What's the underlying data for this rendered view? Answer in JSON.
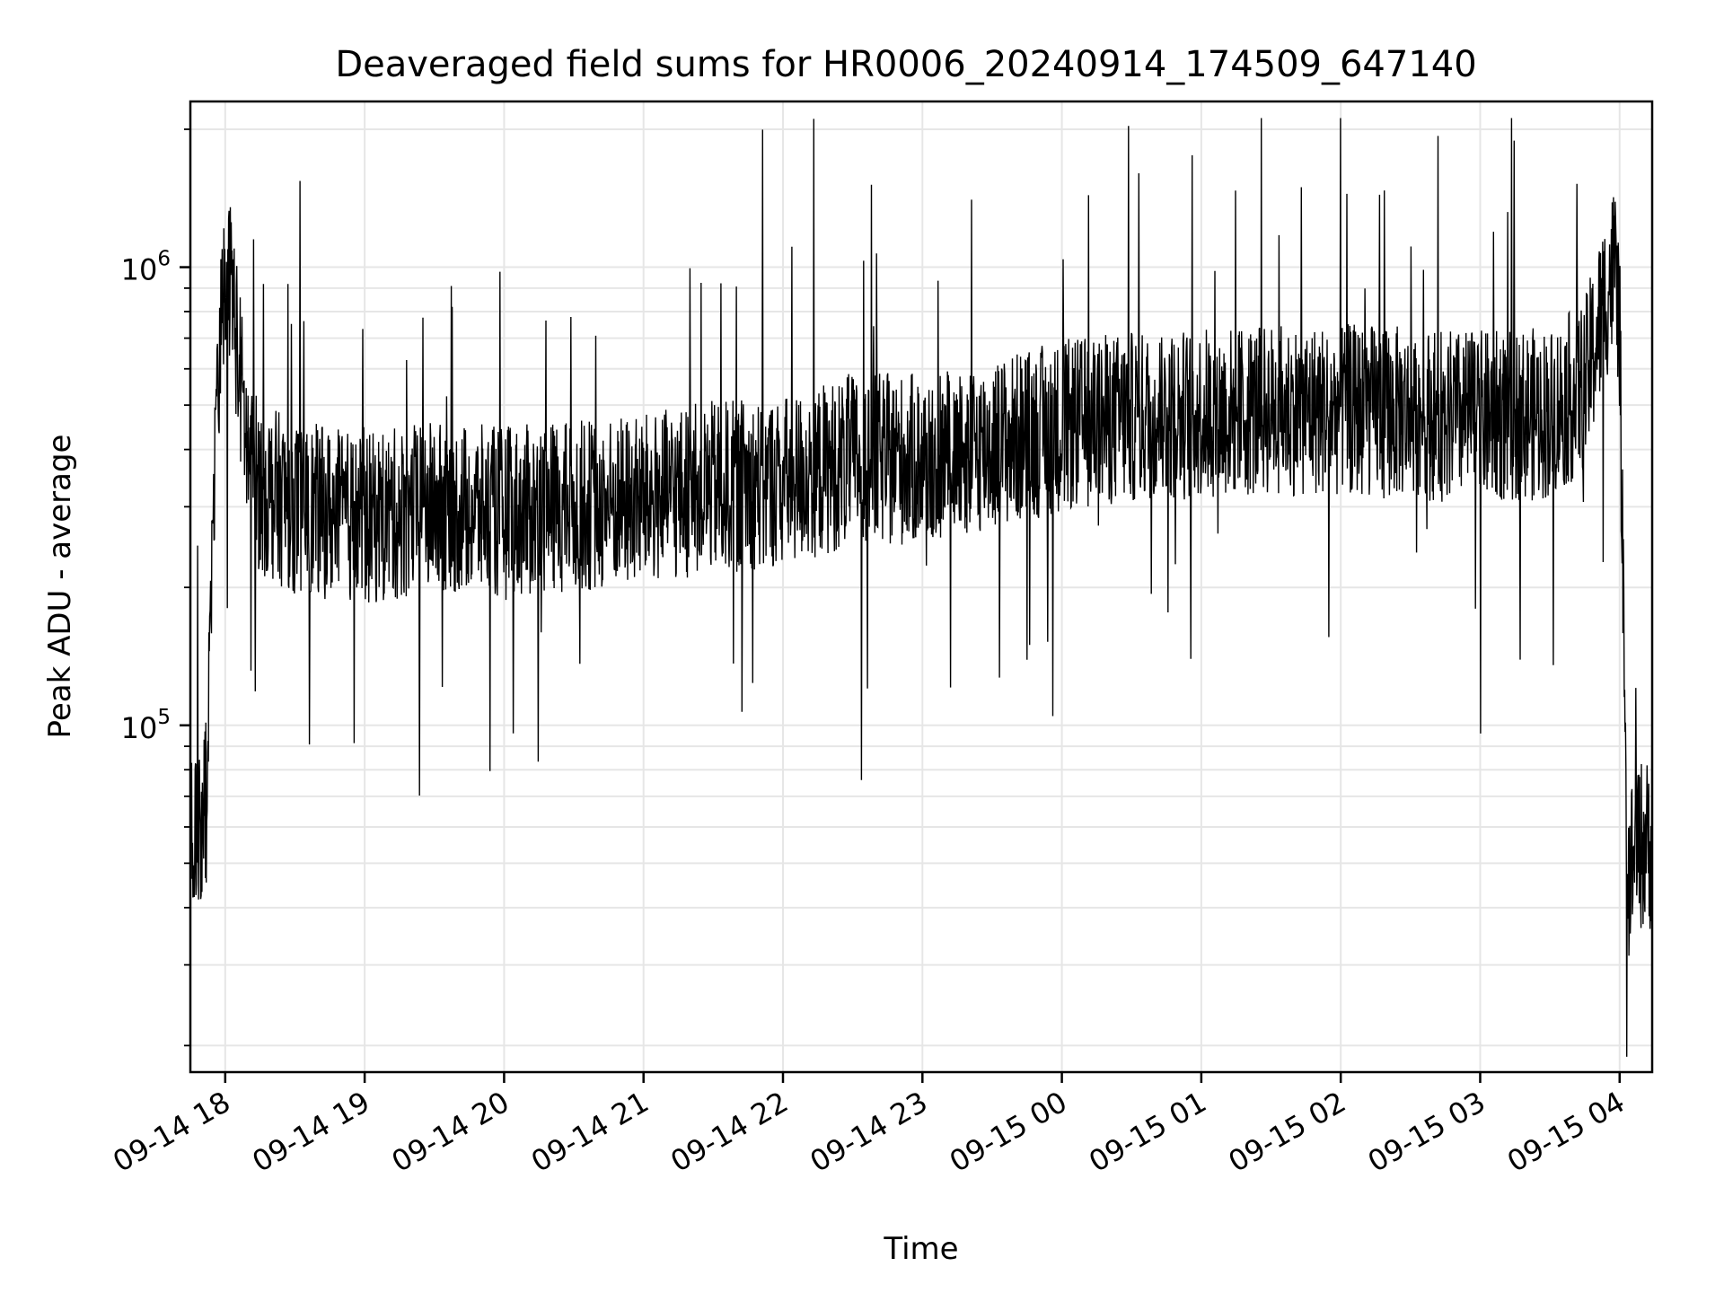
{
  "chart_data": {
    "type": "line",
    "title": "Deaveraged field sums for HR0006_20240914_174509_647140",
    "xlabel": "Time",
    "ylabel": "Peak ADU - average",
    "yscale": "log",
    "grid": true,
    "x_ticks": [
      "09-14 18",
      "09-14 19",
      "09-14 20",
      "09-14 21",
      "09-14 22",
      "09-14 23",
      "09-15 00",
      "09-15 01",
      "09-15 02",
      "09-15 03",
      "09-15 04"
    ],
    "x_range": [
      "2024-09-14 17:45",
      "2024-09-15 04:14"
    ],
    "y_major_ticks": [
      {
        "base": "10",
        "exp": "6",
        "value": 1000000
      },
      {
        "base": "10",
        "exp": "5",
        "value": 100000
      }
    ],
    "ylim": [
      17500,
      2300000
    ],
    "series": [
      {
        "color": "#000000",
        "time": [
          "2024-09-14 17:45",
          "2024-09-14 17:48",
          "2024-09-14 17:52",
          "2024-09-14 17:55",
          "2024-09-14 17:58",
          "2024-09-14 18:00",
          "2024-09-14 18:03",
          "2024-09-14 18:06",
          "2024-09-14 18:10",
          "2024-09-14 18:15",
          "2024-09-14 18:30",
          "2024-09-14 18:45",
          "2024-09-14 19:00",
          "2024-09-14 19:30",
          "2024-09-14 20:00",
          "2024-09-14 20:30",
          "2024-09-14 21:00",
          "2024-09-14 21:30",
          "2024-09-14 22:00",
          "2024-09-14 22:30",
          "2024-09-14 23:00",
          "2024-09-14 23:30",
          "2024-09-15 00:00",
          "2024-09-15 00:30",
          "2024-09-15 01:00",
          "2024-09-15 01:30",
          "2024-09-15 02:00",
          "2024-09-15 02:30",
          "2024-09-15 03:00",
          "2024-09-15 03:30",
          "2024-09-15 03:45",
          "2024-09-15 03:55",
          "2024-09-15 03:58",
          "2024-09-15 04:00",
          "2024-09-15 04:03",
          "2024-09-15 04:07",
          "2024-09-15 04:14"
        ],
        "values": [
          65000,
          55000,
          70000,
          300000,
          700000,
          1050000,
          900000,
          600000,
          380000,
          330000,
          300000,
          290000,
          280000,
          300000,
          290000,
          300000,
          310000,
          330000,
          340000,
          380000,
          380000,
          410000,
          450000,
          470000,
          480000,
          490000,
          490000,
          480000,
          470000,
          480000,
          550000,
          900000,
          1000000,
          750000,
          45000,
          55000,
          55000
        ]
      }
    ]
  }
}
